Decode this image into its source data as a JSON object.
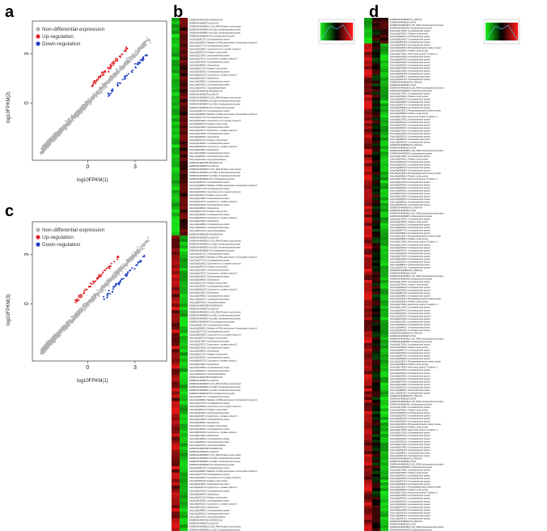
{
  "panels": {
    "a": "a",
    "b": "b",
    "c": "c",
    "d": "d"
  },
  "scatter_legend": {
    "non_diff": "Non-differential expression",
    "up": "Up-regulation",
    "down": "Down-regulation"
  },
  "colors": {
    "non_diff": "#b4b4b4",
    "up": "#e0262a",
    "down": "#1f3fbf",
    "heat_high": "#ff1a1a",
    "heat_mid": "#000000",
    "heat_low": "#19e619"
  },
  "chart_data": [
    {
      "type": "scatter",
      "panel": "a",
      "xlabel": "log10FPKM(1)",
      "ylabel": "log10FPKM(2)",
      "x_ticks": [
        "0",
        "3"
      ],
      "y_ticks": [
        "0",
        "3"
      ],
      "xlim": [
        -3.5,
        5
      ],
      "ylim": [
        -3.5,
        5
      ],
      "legend_position": "top-left",
      "grid": false,
      "series": [
        {
          "name": "Non-differential expression",
          "trend": "y≈x dense cloud"
        },
        {
          "name": "Up-regulation",
          "x_range": [
            0.2,
            2.6
          ],
          "y_offset": 0.8
        },
        {
          "name": "Down-regulation",
          "x_range": [
            1.2,
            3.8
          ],
          "y_offset": -0.8
        }
      ]
    },
    {
      "type": "scatter",
      "panel": "c",
      "xlabel": "log10FPKM(1)",
      "ylabel": "log10FPKM(3)",
      "x_ticks": [
        "0",
        "3"
      ],
      "y_ticks": [
        "0",
        "3"
      ],
      "xlim": [
        -3.5,
        5
      ],
      "ylim": [
        -3.5,
        5
      ],
      "legend_position": "top-left",
      "grid": false,
      "series": [
        {
          "name": "Non-differential expression",
          "trend": "y≈x dense cloud"
        },
        {
          "name": "Up-regulation",
          "x_range": [
            -0.8,
            2.0
          ],
          "y_offset": 0.9
        },
        {
          "name": "Down-regulation",
          "x_range": [
            1.0,
            3.6
          ],
          "y_offset": -0.7
        }
      ]
    },
    {
      "type": "heatmap",
      "panel": "b",
      "color_scale": [
        "low=green",
        "mid=black",
        "high=red"
      ],
      "rows": 158,
      "gene_labels": [
        "ENSRNA049465785 SNORD33 NA",
        "ENSRNA049468279 snoZ6 NA",
        "ENSRNA049468245 5_8S_rRNA Putative ovule protein",
        "ENSRNA049468245 snoU31b Uncharacterized protein",
        "ENSRNA049468067 snoU31b Uncharacterized protein",
        "ENSRNA049468248 U5 Uncharacterized protein",
        "Solyc01g005170.1 Uncharacterized protein",
        "Solyc01g009860.2 Mediator of RNA polymerase II transcription subunit 6",
        "Solyc01g097770.2 Uncharacterized protein",
        "Solyc02g061800.1 Cytochrome b-c1 complex subunit 6",
        "Solyc02g083470.2 Putative ovule protein",
        "Solyc03g112380.2 Uncharacterized protein",
        "Solyc03g113070.2 Cytochrome c oxidase subunit 3",
        "Solyc04g014830.2 Uncharacterized protein",
        "Solyc05g008900.1 Glutaredoxin",
        "Solyc06g051710.2 Putative ovule protein",
        "Solyc07g042830.1 Uncharacterized protein",
        "Solyc08g065150.2 Cytochrome c oxidase subunit 2",
        "Solyc09g011560.2 Glutaredoxin",
        "Solyc10g044980.1 Uncharacterized protein",
        "Solyc11g005260.1 Uncharacterized protein",
        "Solyc12g019410.1 Glycosyltransferase"
      ]
    },
    {
      "type": "heatmap",
      "panel": "d",
      "color_scale": [
        "low=green",
        "mid=black",
        "high=red"
      ],
      "rows": 180,
      "gene_labels": [
        "ENSRNA049468009 5S_rRNA NA",
        "ENSRNA049468125 U3 NA",
        "ENSRNA049468186 5_8S_rRNA Uncharacterized protein",
        "ENSRNA049468238 Uncharacterized protein",
        "Solyc01g017830.1 Uncharacterized protein",
        "Solyc01g079660.1 Putative ovule protein",
        "Solyc01g089910.2 Uncharacterized protein",
        "Solyc02g062690.2 Uncharacterized protein",
        "Solyc02g085730.2 Uncharacterized protein",
        "Solyc03g005890.2 Uncharacterized protein",
        "Solyc03g113830.2 Phosphatidylinositol transfer protein",
        "Solyc04g005860.2 Putative ovule protein",
        "Solyc04g071050.1 Heat shock protein 70 isoform 1",
        "Solyc05g012360.2 Uncharacterized protein",
        "Solyc06g009440.2 Uncharacterized protein",
        "Solyc06g054300.1 Uncharacterized protein",
        "Solyc07g006910.1 Uncharacterized protein",
        "Solyc08g007400.2 Uncharacterized protein",
        "Solyc09g010080.2 Uncharacterized protein",
        "Solyc10g005160.2 Uncharacterized protein",
        "Solyc11g008960.1 Uncharacterized protein",
        "Solyc12g005410.1 Uncharacterized protein"
      ]
    }
  ]
}
